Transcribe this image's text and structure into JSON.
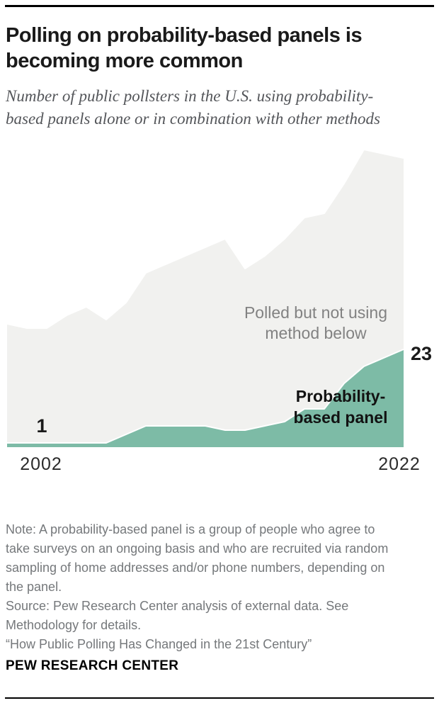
{
  "header": {
    "title_lines": [
      "Polling on probability-based panels is",
      "becoming more common"
    ],
    "subtitle_lines": [
      "Number of public pollsters in the U.S. using probability-",
      "based panels alone or in combination with other methods"
    ]
  },
  "chart_data": {
    "type": "area",
    "x": [
      2002,
      2003,
      2004,
      2005,
      2006,
      2007,
      2008,
      2009,
      2010,
      2011,
      2012,
      2013,
      2014,
      2015,
      2016,
      2017,
      2018,
      2019,
      2020,
      2021,
      2022
    ],
    "x_tick_labels": [
      "2002",
      "2022"
    ],
    "ylim": [
      0,
      75
    ],
    "grid": "off",
    "legend": "labels drawn inside areas",
    "series": [
      {
        "name": "Polled but not using method below",
        "role": "background-envelope",
        "color": "#f1f1ef",
        "edge_color": "#ffffff",
        "label_lines": [
          "Polled but not using",
          "method below"
        ],
        "values": [
          29,
          28,
          28,
          31,
          33,
          30,
          34,
          41,
          43,
          45,
          47,
          49,
          42,
          45,
          49,
          54,
          55,
          62,
          70,
          69,
          68
        ]
      },
      {
        "name": "Probability-based panel",
        "role": "foreground",
        "color": "#7dbba6",
        "edge_color": "#ffffff",
        "label_lines": [
          "Probability-",
          "based panel"
        ],
        "values": [
          1,
          1,
          1,
          1,
          1,
          1,
          3,
          5,
          5,
          5,
          5,
          4,
          4,
          5,
          6,
          9,
          9,
          15,
          19,
          21,
          23
        ],
        "first_value_label": "1",
        "last_value_label": "23"
      }
    ]
  },
  "footer": {
    "note_lines": [
      "Note: A probability-based panel is a group of people who agree to",
      "take surveys on an ongoing basis and who are recruited via random",
      "sampling of home addresses and/or phone numbers, depending on",
      "the panel."
    ],
    "source_lines": [
      "Source: Pew Research Center analysis of external data. See",
      "Methodology for details."
    ],
    "quote_line": "“How Public Polling Has Changed in the 21st Century”",
    "brand": "PEW RESEARCH CENTER"
  }
}
